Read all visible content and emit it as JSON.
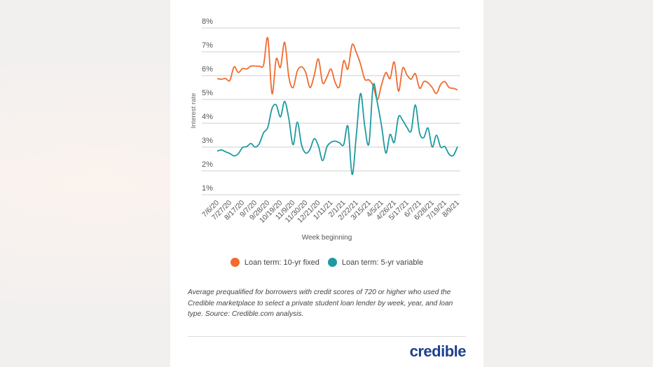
{
  "chart_data": {
    "type": "line",
    "title": "",
    "xlabel": "Week beginning",
    "ylabel": "Interest rate",
    "ylim": [
      1,
      8
    ],
    "yticks": [
      "8%",
      "7%",
      "6%",
      "5%",
      "4%",
      "3%",
      "2%",
      "1%"
    ],
    "grid": true,
    "legend_position": "bottom",
    "x": [
      "7/6/20",
      "7/13/20",
      "7/20/20",
      "7/27/20",
      "8/3/20",
      "8/10/20",
      "8/17/20",
      "8/24/20",
      "8/31/20",
      "9/7/20",
      "9/14/20",
      "9/21/20",
      "9/28/20",
      "10/5/20",
      "10/12/20",
      "10/19/20",
      "10/26/20",
      "11/2/20",
      "11/9/20",
      "11/16/20",
      "11/23/20",
      "11/30/20",
      "12/7/20",
      "12/14/20",
      "12/21/20",
      "12/28/20",
      "1/4/21",
      "1/11/21",
      "1/18/21",
      "1/25/21",
      "2/1/21",
      "2/8/21",
      "2/15/21",
      "2/22/21",
      "3/1/21",
      "3/8/21",
      "3/15/21",
      "3/22/21",
      "3/29/21",
      "4/5/21",
      "4/12/21",
      "4/19/21",
      "4/26/21",
      "5/3/21",
      "5/10/21",
      "5/17/21",
      "5/24/21",
      "5/31/21",
      "6/7/21",
      "6/14/21",
      "6/21/21",
      "6/28/21",
      "7/5/21",
      "7/12/21",
      "7/19/21",
      "7/26/21",
      "8/2/21",
      "8/9/21"
    ],
    "xticks": [
      "7/6/20",
      "7/27/20",
      "8/17/20",
      "9/7/20",
      "9/28/20",
      "10/19/20",
      "11/9/20",
      "11/30/20",
      "12/21/20",
      "1/11/21",
      "2/1/21",
      "2/22/21",
      "3/15/21",
      "4/5/21",
      "4/26/21",
      "5/17/21",
      "6/7/21",
      "6/28/21",
      "7/19/21",
      "8/9/21"
    ],
    "series": [
      {
        "name": "Loan term: 10-yr fixed",
        "color": "#f26a2e",
        "values": [
          5.88,
          5.85,
          5.88,
          5.8,
          6.37,
          6.13,
          6.3,
          6.28,
          6.4,
          6.4,
          6.4,
          6.45,
          7.58,
          5.25,
          6.7,
          6.35,
          7.4,
          5.93,
          5.5,
          6.2,
          6.37,
          6.13,
          5.5,
          6.0,
          6.7,
          5.7,
          5.93,
          6.28,
          5.7,
          5.55,
          6.62,
          6.28,
          7.3,
          6.97,
          6.48,
          5.85,
          5.82,
          5.57,
          5.0,
          5.63,
          6.13,
          5.88,
          6.57,
          5.35,
          6.32,
          6.03,
          5.85,
          6.08,
          5.47,
          5.75,
          5.7,
          5.5,
          5.25,
          5.63,
          5.75,
          5.5,
          5.47,
          5.4
        ]
      },
      {
        "name": "Loan term: 5-yr variable",
        "color": "#1e9aa0",
        "values": [
          2.83,
          2.88,
          2.8,
          2.73,
          2.63,
          2.72,
          2.98,
          3.02,
          3.15,
          3.0,
          3.15,
          3.6,
          3.83,
          4.62,
          4.77,
          4.27,
          4.92,
          4.18,
          3.1,
          4.05,
          3.1,
          2.75,
          2.9,
          3.35,
          3.05,
          2.43,
          3.0,
          3.2,
          3.25,
          3.18,
          3.1,
          3.87,
          1.85,
          3.5,
          5.25,
          3.87,
          3.15,
          5.6,
          4.85,
          3.87,
          2.75,
          3.53,
          3.2,
          4.27,
          4.12,
          3.83,
          3.68,
          4.77,
          3.6,
          3.4,
          3.8,
          3.0,
          3.5,
          3.0,
          3.02,
          2.7,
          2.65,
          3.02
        ]
      }
    ]
  },
  "caption": "Average prequalified for borrowers with credit scores of 720 or higher who used the Credible marketplace to select a private student loan lender by week, year, and loan type. Source: Credible.com analysis.",
  "logo": "credible"
}
